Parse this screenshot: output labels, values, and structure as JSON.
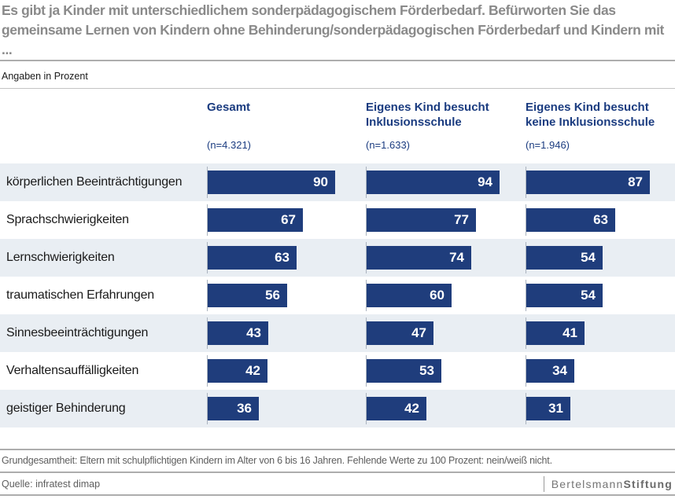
{
  "title": "Es gibt ja Kinder mit unterschiedlichem sonderpädagogischem Förderbedarf. Befürworten Sie das gemeinsame Lernen von Kindern ohne Behinderung/sonderpädagogischen Förderbedarf und Kindern mit ...",
  "subtitle": "Angaben in Prozent",
  "columns": [
    {
      "label": "Gesamt",
      "n": "(n=4.321)"
    },
    {
      "label": "Eigenes Kind besucht Inklusionsschule",
      "n": "(n=1.633)"
    },
    {
      "label": "Eigenes Kind besucht keine Inklusionsschule",
      "n": "(n=1.946)"
    }
  ],
  "rows": [
    {
      "label": "körperlichen Beeinträchtigungen",
      "values": [
        90,
        94,
        87
      ]
    },
    {
      "label": "Sprachschwierigkeiten",
      "values": [
        67,
        77,
        63
      ]
    },
    {
      "label": "Lernschwierigkeiten",
      "values": [
        63,
        74,
        54
      ]
    },
    {
      "label": "traumatischen Erfahrungen",
      "values": [
        56,
        60,
        54
      ]
    },
    {
      "label": "Sinnesbeeinträchtigungen",
      "values": [
        43,
        47,
        41
      ]
    },
    {
      "label": "Verhaltensauffälligkeiten",
      "values": [
        42,
        53,
        34
      ]
    },
    {
      "label": "geistiger Behinderung",
      "values": [
        36,
        42,
        31
      ]
    }
  ],
  "footnote": "Grundgesamtheit: Eltern mit schulpflichtigen Kindern im Alter von 6 bis 16 Jahren. Fehlende Werte zu 100 Prozent: nein/weiß nicht.",
  "source": "Quelle: infratest dimap",
  "logo": {
    "normal": "Bertelsmann",
    "bold": "Stiftung"
  },
  "colors": {
    "bar": "#1f3d7c",
    "header_text": "#1b3c80",
    "row_alt_bg": "#e9eef3",
    "title_gray": "#8a8a8a",
    "bar_value_text": "#ffffff"
  },
  "chart_data": {
    "type": "bar",
    "orientation": "horizontal",
    "title": "Es gibt ja Kinder mit unterschiedlichem sonderpädagogischem Förderbedarf. Befürworten Sie das gemeinsame Lernen von Kindern ohne Behinderung/sonderpädagogischen Förderbedarf und Kindern mit ...",
    "units_label": "Angaben in Prozent",
    "categories": [
      "körperlichen Beeinträchtigungen",
      "Sprachschwierigkeiten",
      "Lernschwierigkeiten",
      "traumatischen Erfahrungen",
      "Sinnesbeeinträchtigungen",
      "Verhaltensauffälligkeiten",
      "geistiger Behinderung"
    ],
    "series": [
      {
        "name": "Gesamt (n=4.321)",
        "values": [
          90,
          67,
          63,
          56,
          43,
          42,
          36
        ]
      },
      {
        "name": "Eigenes Kind besucht Inklusionsschule (n=1.633)",
        "values": [
          94,
          77,
          74,
          60,
          47,
          53,
          42
        ]
      },
      {
        "name": "Eigenes Kind besucht keine Inklusionsschule (n=1.946)",
        "values": [
          87,
          63,
          54,
          54,
          41,
          34,
          31
        ]
      }
    ],
    "xlim": [
      0,
      100
    ],
    "value_labels": true,
    "grid": false,
    "legend_position": "column-headers"
  }
}
